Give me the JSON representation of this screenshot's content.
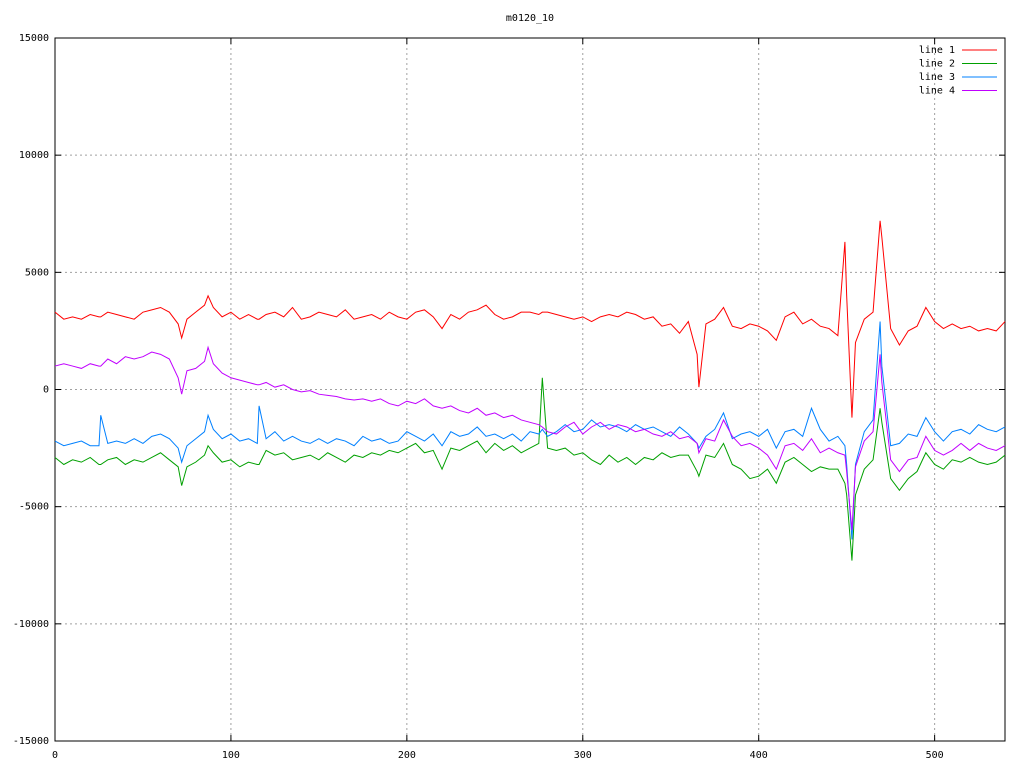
{
  "chart_data": {
    "type": "line",
    "title": "m0120_10",
    "x": [
      0,
      5,
      10,
      15,
      20,
      25,
      26,
      30,
      35,
      40,
      45,
      50,
      55,
      60,
      65,
      70,
      72,
      75,
      80,
      85,
      87,
      90,
      95,
      100,
      105,
      110,
      115,
      116,
      120,
      125,
      130,
      135,
      140,
      145,
      150,
      155,
      160,
      165,
      170,
      175,
      180,
      185,
      190,
      195,
      200,
      205,
      210,
      215,
      220,
      225,
      230,
      235,
      240,
      245,
      250,
      255,
      260,
      265,
      270,
      275,
      277,
      280,
      285,
      290,
      295,
      300,
      305,
      310,
      315,
      320,
      325,
      330,
      335,
      340,
      345,
      350,
      355,
      360,
      365,
      366,
      370,
      375,
      380,
      385,
      390,
      395,
      400,
      405,
      410,
      415,
      420,
      425,
      430,
      435,
      440,
      445,
      449,
      450,
      453,
      455,
      460,
      465,
      469,
      470,
      475,
      480,
      485,
      490,
      495,
      500,
      505,
      510,
      515,
      520,
      525,
      530,
      535,
      540
    ],
    "series": [
      {
        "name": "line 1",
        "color": "#ff0000",
        "values": [
          3300,
          3000,
          3100,
          3000,
          3200,
          3100,
          3100,
          3300,
          3200,
          3100,
          3000,
          3300,
          3400,
          3500,
          3300,
          2800,
          2200,
          3000,
          3300,
          3600,
          4000,
          3500,
          3100,
          3300,
          3000,
          3200,
          3000,
          3000,
          3200,
          3300,
          3100,
          3500,
          3000,
          3100,
          3300,
          3200,
          3100,
          3400,
          3000,
          3100,
          3200,
          3000,
          3300,
          3100,
          3000,
          3300,
          3400,
          3100,
          2600,
          3200,
          3000,
          3300,
          3400,
          3600,
          3200,
          3000,
          3100,
          3300,
          3300,
          3200,
          3300,
          3300,
          3200,
          3100,
          3000,
          3100,
          2900,
          3100,
          3200,
          3100,
          3300,
          3200,
          3000,
          3100,
          2700,
          2800,
          2400,
          2900,
          1500,
          100,
          2800,
          3000,
          3500,
          2700,
          2600,
          2800,
          2700,
          2500,
          2100,
          3100,
          3300,
          2800,
          3000,
          2700,
          2600,
          2300,
          6300,
          4000,
          -1200,
          2000,
          3000,
          3300,
          7200,
          6500,
          2600,
          1900,
          2500,
          2700,
          3500,
          2900,
          2600,
          2800,
          2600,
          2700,
          2500,
          2600,
          2500,
          2900
        ]
      },
      {
        "name": "line 2",
        "color": "#00a000",
        "values": [
          -2900,
          -3200,
          -3000,
          -3100,
          -2900,
          -3200,
          -3200,
          -3000,
          -2900,
          -3200,
          -3000,
          -3100,
          -2900,
          -2700,
          -3000,
          -3300,
          -4100,
          -3300,
          -3100,
          -2800,
          -2400,
          -2700,
          -3100,
          -3000,
          -3300,
          -3100,
          -3200,
          -3200,
          -2600,
          -2800,
          -2700,
          -3000,
          -2900,
          -2800,
          -3000,
          -2700,
          -2900,
          -3100,
          -2800,
          -2900,
          -2700,
          -2800,
          -2600,
          -2700,
          -2500,
          -2300,
          -2700,
          -2600,
          -3400,
          -2500,
          -2600,
          -2400,
          -2200,
          -2700,
          -2300,
          -2600,
          -2400,
          -2700,
          -2500,
          -2300,
          500,
          -2500,
          -2600,
          -2500,
          -2800,
          -2700,
          -3000,
          -3200,
          -2800,
          -3100,
          -2900,
          -3200,
          -2900,
          -3000,
          -2700,
          -2900,
          -2800,
          -2800,
          -3500,
          -3700,
          -2800,
          -2900,
          -2300,
          -3200,
          -3400,
          -3800,
          -3700,
          -3400,
          -4000,
          -3100,
          -2900,
          -3200,
          -3500,
          -3300,
          -3400,
          -3400,
          -4000,
          -4500,
          -7300,
          -4500,
          -3400,
          -3000,
          -800,
          -1400,
          -3800,
          -4300,
          -3800,
          -3500,
          -2700,
          -3200,
          -3400,
          -3000,
          -3100,
          -2900,
          -3100,
          -3200,
          -3100,
          -2800
        ]
      },
      {
        "name": "line 3",
        "color": "#0080ff",
        "values": [
          -2200,
          -2400,
          -2300,
          -2200,
          -2400,
          -2400,
          -1100,
          -2300,
          -2200,
          -2300,
          -2100,
          -2300,
          -2000,
          -1900,
          -2100,
          -2500,
          -3100,
          -2400,
          -2100,
          -1800,
          -1100,
          -1700,
          -2100,
          -1900,
          -2200,
          -2100,
          -2300,
          -700,
          -2100,
          -1800,
          -2200,
          -2000,
          -2200,
          -2300,
          -2100,
          -2300,
          -2100,
          -2200,
          -2400,
          -2000,
          -2200,
          -2100,
          -2300,
          -2200,
          -1800,
          -2000,
          -2200,
          -1900,
          -2400,
          -1800,
          -2000,
          -1900,
          -1600,
          -2000,
          -1900,
          -2100,
          -1900,
          -2200,
          -1800,
          -1900,
          -1700,
          -2000,
          -1800,
          -1500,
          -1800,
          -1700,
          -1300,
          -1600,
          -1500,
          -1600,
          -1800,
          -1500,
          -1700,
          -1600,
          -1800,
          -2000,
          -1600,
          -1900,
          -2300,
          -2500,
          -2000,
          -1700,
          -1000,
          -2100,
          -1900,
          -1800,
          -2000,
          -1700,
          -2500,
          -1800,
          -1700,
          -2000,
          -800,
          -1700,
          -2200,
          -2000,
          -2400,
          -3200,
          -6400,
          -3200,
          -1800,
          -1300,
          2900,
          1000,
          -2400,
          -2300,
          -1900,
          -2000,
          -1200,
          -1800,
          -2200,
          -1800,
          -1700,
          -1900,
          -1500,
          -1700,
          -1800,
          -1600
        ]
      },
      {
        "name": "line 4",
        "color": "#c000ff",
        "values": [
          1000,
          1100,
          1000,
          900,
          1100,
          1000,
          1000,
          1300,
          1100,
          1400,
          1300,
          1400,
          1600,
          1500,
          1300,
          500,
          -200,
          800,
          900,
          1200,
          1800,
          1100,
          700,
          500,
          400,
          300,
          200,
          200,
          300,
          100,
          200,
          0,
          -100,
          -50,
          -200,
          -250,
          -300,
          -400,
          -450,
          -400,
          -500,
          -400,
          -600,
          -700,
          -500,
          -600,
          -400,
          -700,
          -800,
          -700,
          -900,
          -1000,
          -800,
          -1100,
          -1000,
          -1200,
          -1100,
          -1300,
          -1400,
          -1500,
          -1600,
          -1800,
          -1900,
          -1600,
          -1400,
          -1900,
          -1600,
          -1400,
          -1700,
          -1500,
          -1600,
          -1800,
          -1700,
          -1900,
          -2000,
          -1800,
          -2100,
          -2000,
          -2300,
          -2700,
          -2100,
          -2200,
          -1300,
          -2000,
          -2400,
          -2300,
          -2500,
          -2800,
          -3400,
          -2400,
          -2300,
          -2600,
          -2100,
          -2700,
          -2500,
          -2700,
          -2800,
          -3500,
          -6000,
          -3300,
          -2200,
          -1800,
          1500,
          300,
          -3000,
          -3500,
          -3000,
          -2900,
          -2000,
          -2600,
          -2800,
          -2600,
          -2300,
          -2600,
          -2300,
          -2500,
          -2600,
          -2400
        ]
      }
    ],
    "xlim": [
      0,
      540
    ],
    "xticks": [
      0,
      100,
      200,
      300,
      400,
      500
    ],
    "ylim": [
      -15000,
      15000
    ],
    "yticks": [
      -15000,
      -10000,
      -5000,
      0,
      5000,
      10000,
      15000
    ],
    "grid": true,
    "legend": "top-right"
  }
}
